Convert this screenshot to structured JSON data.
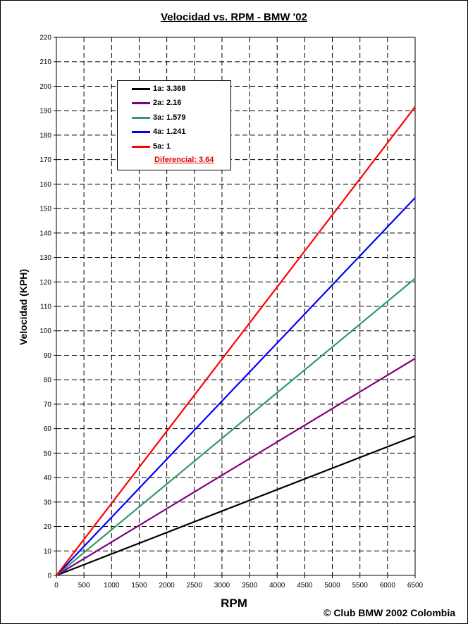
{
  "chart_data": {
    "type": "line",
    "title": "Velocidad vs. RPM - BMW '02",
    "xlabel": "RPM",
    "ylabel": "Velocidad (KPH)",
    "xlim": [
      0,
      6500
    ],
    "ylim": [
      0,
      220
    ],
    "xticks": [
      0,
      500,
      1000,
      1500,
      2000,
      2500,
      3000,
      3500,
      4000,
      4500,
      5000,
      5500,
      6000,
      6500
    ],
    "yticks": [
      0,
      10,
      20,
      30,
      40,
      50,
      60,
      70,
      80,
      90,
      100,
      110,
      120,
      130,
      140,
      150,
      160,
      170,
      180,
      190,
      200,
      210,
      220
    ],
    "grid": "dashed",
    "legend_position": "top-left",
    "series": [
      {
        "name": "1a: 3.368",
        "color": "#000000",
        "x": [
          0,
          6500
        ],
        "y": [
          0,
          57
        ]
      },
      {
        "name": "2a: 2.16",
        "color": "#800080",
        "x": [
          0,
          6500
        ],
        "y": [
          0,
          88.7
        ]
      },
      {
        "name": "3a: 1.579",
        "color": "#339966",
        "x": [
          0,
          6500
        ],
        "y": [
          0,
          121.4
        ]
      },
      {
        "name": "4a: 1.241",
        "color": "#0000ff",
        "x": [
          0,
          6500
        ],
        "y": [
          0,
          154.4
        ]
      },
      {
        "name": "5a: 1",
        "color": "#ff0000",
        "x": [
          0,
          6500
        ],
        "y": [
          0,
          191.6
        ]
      }
    ],
    "legend_note": "Diferencial: 3.64"
  },
  "copyright": "© Club BMW 2002 Colombia"
}
